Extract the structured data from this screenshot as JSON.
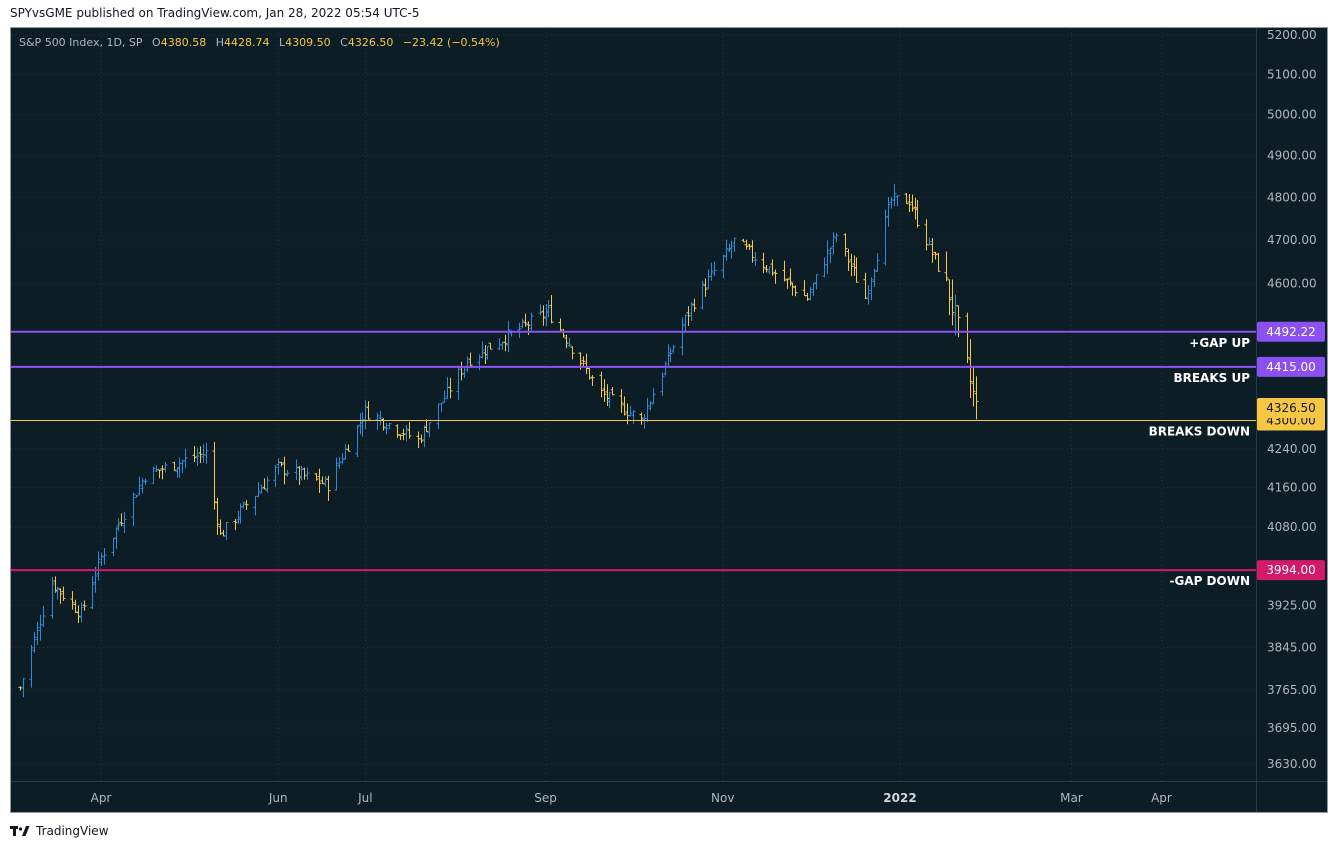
{
  "header": {
    "text": "SPYvsGME published on TradingView.com, Jan 28, 2022 05:54 UTC-5"
  },
  "footer": {
    "brand": "TradingView"
  },
  "legend": {
    "symbol": "S&P 500 Index, 1D, SP",
    "o_label": "O",
    "o_value": "4380.58",
    "h_label": "H",
    "h_value": "4428.74",
    "l_label": "L",
    "l_value": "4309.50",
    "c_label": "C",
    "c_value": "4326.50",
    "change": "−23.42 (−0.54%)"
  },
  "colors": {
    "background": "#0c1d26",
    "up": "#2f89d8",
    "down": "#f5c743",
    "accent": "#f5c743",
    "purple": "#8b51f0",
    "magenta": "#d3196a",
    "axis_text": "#b2b5be"
  },
  "chart_data": {
    "type": "bar",
    "subtype": "ohlc",
    "title": "S&P 500 Index, 1D, SP",
    "x_axis": {
      "ticks": [
        {
          "label": "Apr",
          "date": "2021-04-01",
          "bold": false
        },
        {
          "label": "Jun",
          "date": "2021-06-01",
          "bold": false
        },
        {
          "label": "Jul",
          "date": "2021-07-01",
          "bold": false
        },
        {
          "label": "Sep",
          "date": "2021-09-01",
          "bold": false
        },
        {
          "label": "Nov",
          "date": "2021-11-01",
          "bold": false
        },
        {
          "label": "2022",
          "date": "2022-01-01",
          "bold": true
        },
        {
          "label": "Mar",
          "date": "2022-03-01",
          "bold": false
        },
        {
          "label": "Apr",
          "date": "2022-04-01",
          "bold": false
        }
      ]
    },
    "y_axis": {
      "scale": "log",
      "ticks": [
        "5200.00",
        "5100.00",
        "5000.00",
        "4900.00",
        "4800.00",
        "4700.00",
        "4600.00",
        "4240.00",
        "4160.00",
        "4080.00",
        "3925.00",
        "3845.00",
        "3765.00",
        "3695.00",
        "3630.00"
      ],
      "tick_values": [
        5200,
        5100,
        5000,
        4900,
        4800,
        4700,
        4600,
        4240,
        4160,
        4080,
        3925,
        3845,
        3765,
        3695,
        3630
      ]
    },
    "price_anchors": [
      {
        "date": "2021-03-04",
        "close": 3769
      },
      {
        "date": "2021-03-15",
        "close": 3969
      },
      {
        "date": "2021-03-25",
        "close": 3910
      },
      {
        "date": "2021-04-01",
        "close": 4020
      },
      {
        "date": "2021-04-16",
        "close": 4185
      },
      {
        "date": "2021-05-07",
        "close": 4232
      },
      {
        "date": "2021-05-12",
        "close": 4063
      },
      {
        "date": "2021-06-01",
        "close": 4202
      },
      {
        "date": "2021-06-18",
        "close": 4166
      },
      {
        "date": "2021-07-01",
        "close": 4320
      },
      {
        "date": "2021-07-19",
        "close": 4258
      },
      {
        "date": "2021-08-05",
        "close": 4429
      },
      {
        "date": "2021-09-02",
        "close": 4537
      },
      {
        "date": "2021-09-20",
        "close": 4358
      },
      {
        "date": "2021-10-04",
        "close": 4300
      },
      {
        "date": "2021-10-21",
        "close": 4549
      },
      {
        "date": "2021-11-05",
        "close": 4697
      },
      {
        "date": "2021-11-30",
        "close": 4567
      },
      {
        "date": "2021-12-10",
        "close": 4712
      },
      {
        "date": "2021-12-20",
        "close": 4568
      },
      {
        "date": "2021-12-29",
        "close": 4793
      },
      {
        "date": "2022-01-04",
        "close": 4793
      },
      {
        "date": "2022-01-18",
        "close": 4577
      },
      {
        "date": "2022-01-24",
        "close": 4410
      },
      {
        "date": "2022-01-27",
        "close": 4326.5
      }
    ],
    "horizontal_lines": [
      {
        "price": 4492.22,
        "label": "+GAP UP",
        "price_label": "4492.22",
        "color": "#8b51f0"
      },
      {
        "price": 4415.0,
        "label": "BREAKS UP",
        "price_label": "4415.00",
        "color": "#8b51f0"
      },
      {
        "price": 4300.0,
        "label": "BREAKS DOWN",
        "price_label": "4300.00",
        "color": "#f5c743"
      },
      {
        "price": 3994.0,
        "label": "-GAP DOWN",
        "price_label": "3994.00",
        "color": "#d3196a"
      }
    ],
    "last_price": {
      "value": 4326.5,
      "label": "4326.50"
    }
  }
}
